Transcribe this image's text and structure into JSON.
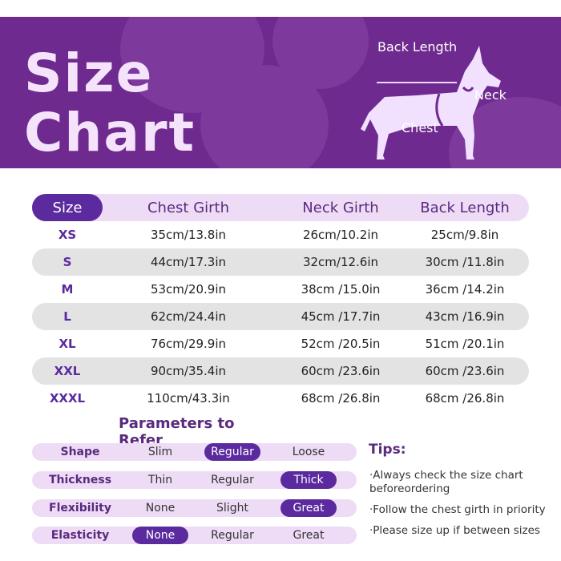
{
  "banner": {
    "title_line1": "Size",
    "title_line2": "Chart",
    "label_back_length": "Back Length",
    "label_neck": "Neck",
    "label_chest": "Chest"
  },
  "table": {
    "headers": [
      "Size",
      "Chest Girth",
      "Neck Girth",
      "Back Length"
    ],
    "rows": [
      {
        "size": "XS",
        "chest": "35cm/13.8in",
        "neck": "26cm/10.2in",
        "back": "25cm/9.8in"
      },
      {
        "size": "S",
        "chest": "44cm/17.3in",
        "neck": "32cm/12.6in",
        "back": "30cm /11.8in"
      },
      {
        "size": "M",
        "chest": "53cm/20.9in",
        "neck": "38cm /15.0in",
        "back": "36cm /14.2in"
      },
      {
        "size": "L",
        "chest": "62cm/24.4in",
        "neck": "45cm /17.7in",
        "back": "43cm /16.9in"
      },
      {
        "size": "XL",
        "chest": "76cm/29.9in",
        "neck": "52cm /20.5in",
        "back": "51cm /20.1in"
      },
      {
        "size": "XXL",
        "chest": "90cm/35.4in",
        "neck": "60cm /23.6in",
        "back": "60cm /23.6in"
      },
      {
        "size": "XXXL",
        "chest": "110cm/43.3in",
        "neck": "68cm /26.8in",
        "back": "68cm /26.8in"
      }
    ]
  },
  "parameters": {
    "title": "Parameters to Refer",
    "rows": [
      {
        "label": "Shape",
        "options": [
          "Slim",
          "Regular",
          "Loose"
        ],
        "selected": "Regular"
      },
      {
        "label": "Thickness",
        "options": [
          "Thin",
          "Regular",
          "Thick"
        ],
        "selected": "Thick"
      },
      {
        "label": "Flexibility",
        "options": [
          "None",
          "Slight",
          "Great"
        ],
        "selected": "Great"
      },
      {
        "label": "Elasticity",
        "options": [
          "None",
          "Regular",
          "Great"
        ],
        "selected": "None"
      }
    ]
  },
  "tips": {
    "title": "Tips:",
    "items": [
      "·Always check the size chart beforeordering",
      "·Follow the chest girth in priority",
      "·Please size up if between sizes"
    ]
  },
  "colors": {
    "banner": "#6e2a8e",
    "accent": "#5a2a9e",
    "header_row": "#eedcf6",
    "shaded_row": "#e3e3e3"
  }
}
